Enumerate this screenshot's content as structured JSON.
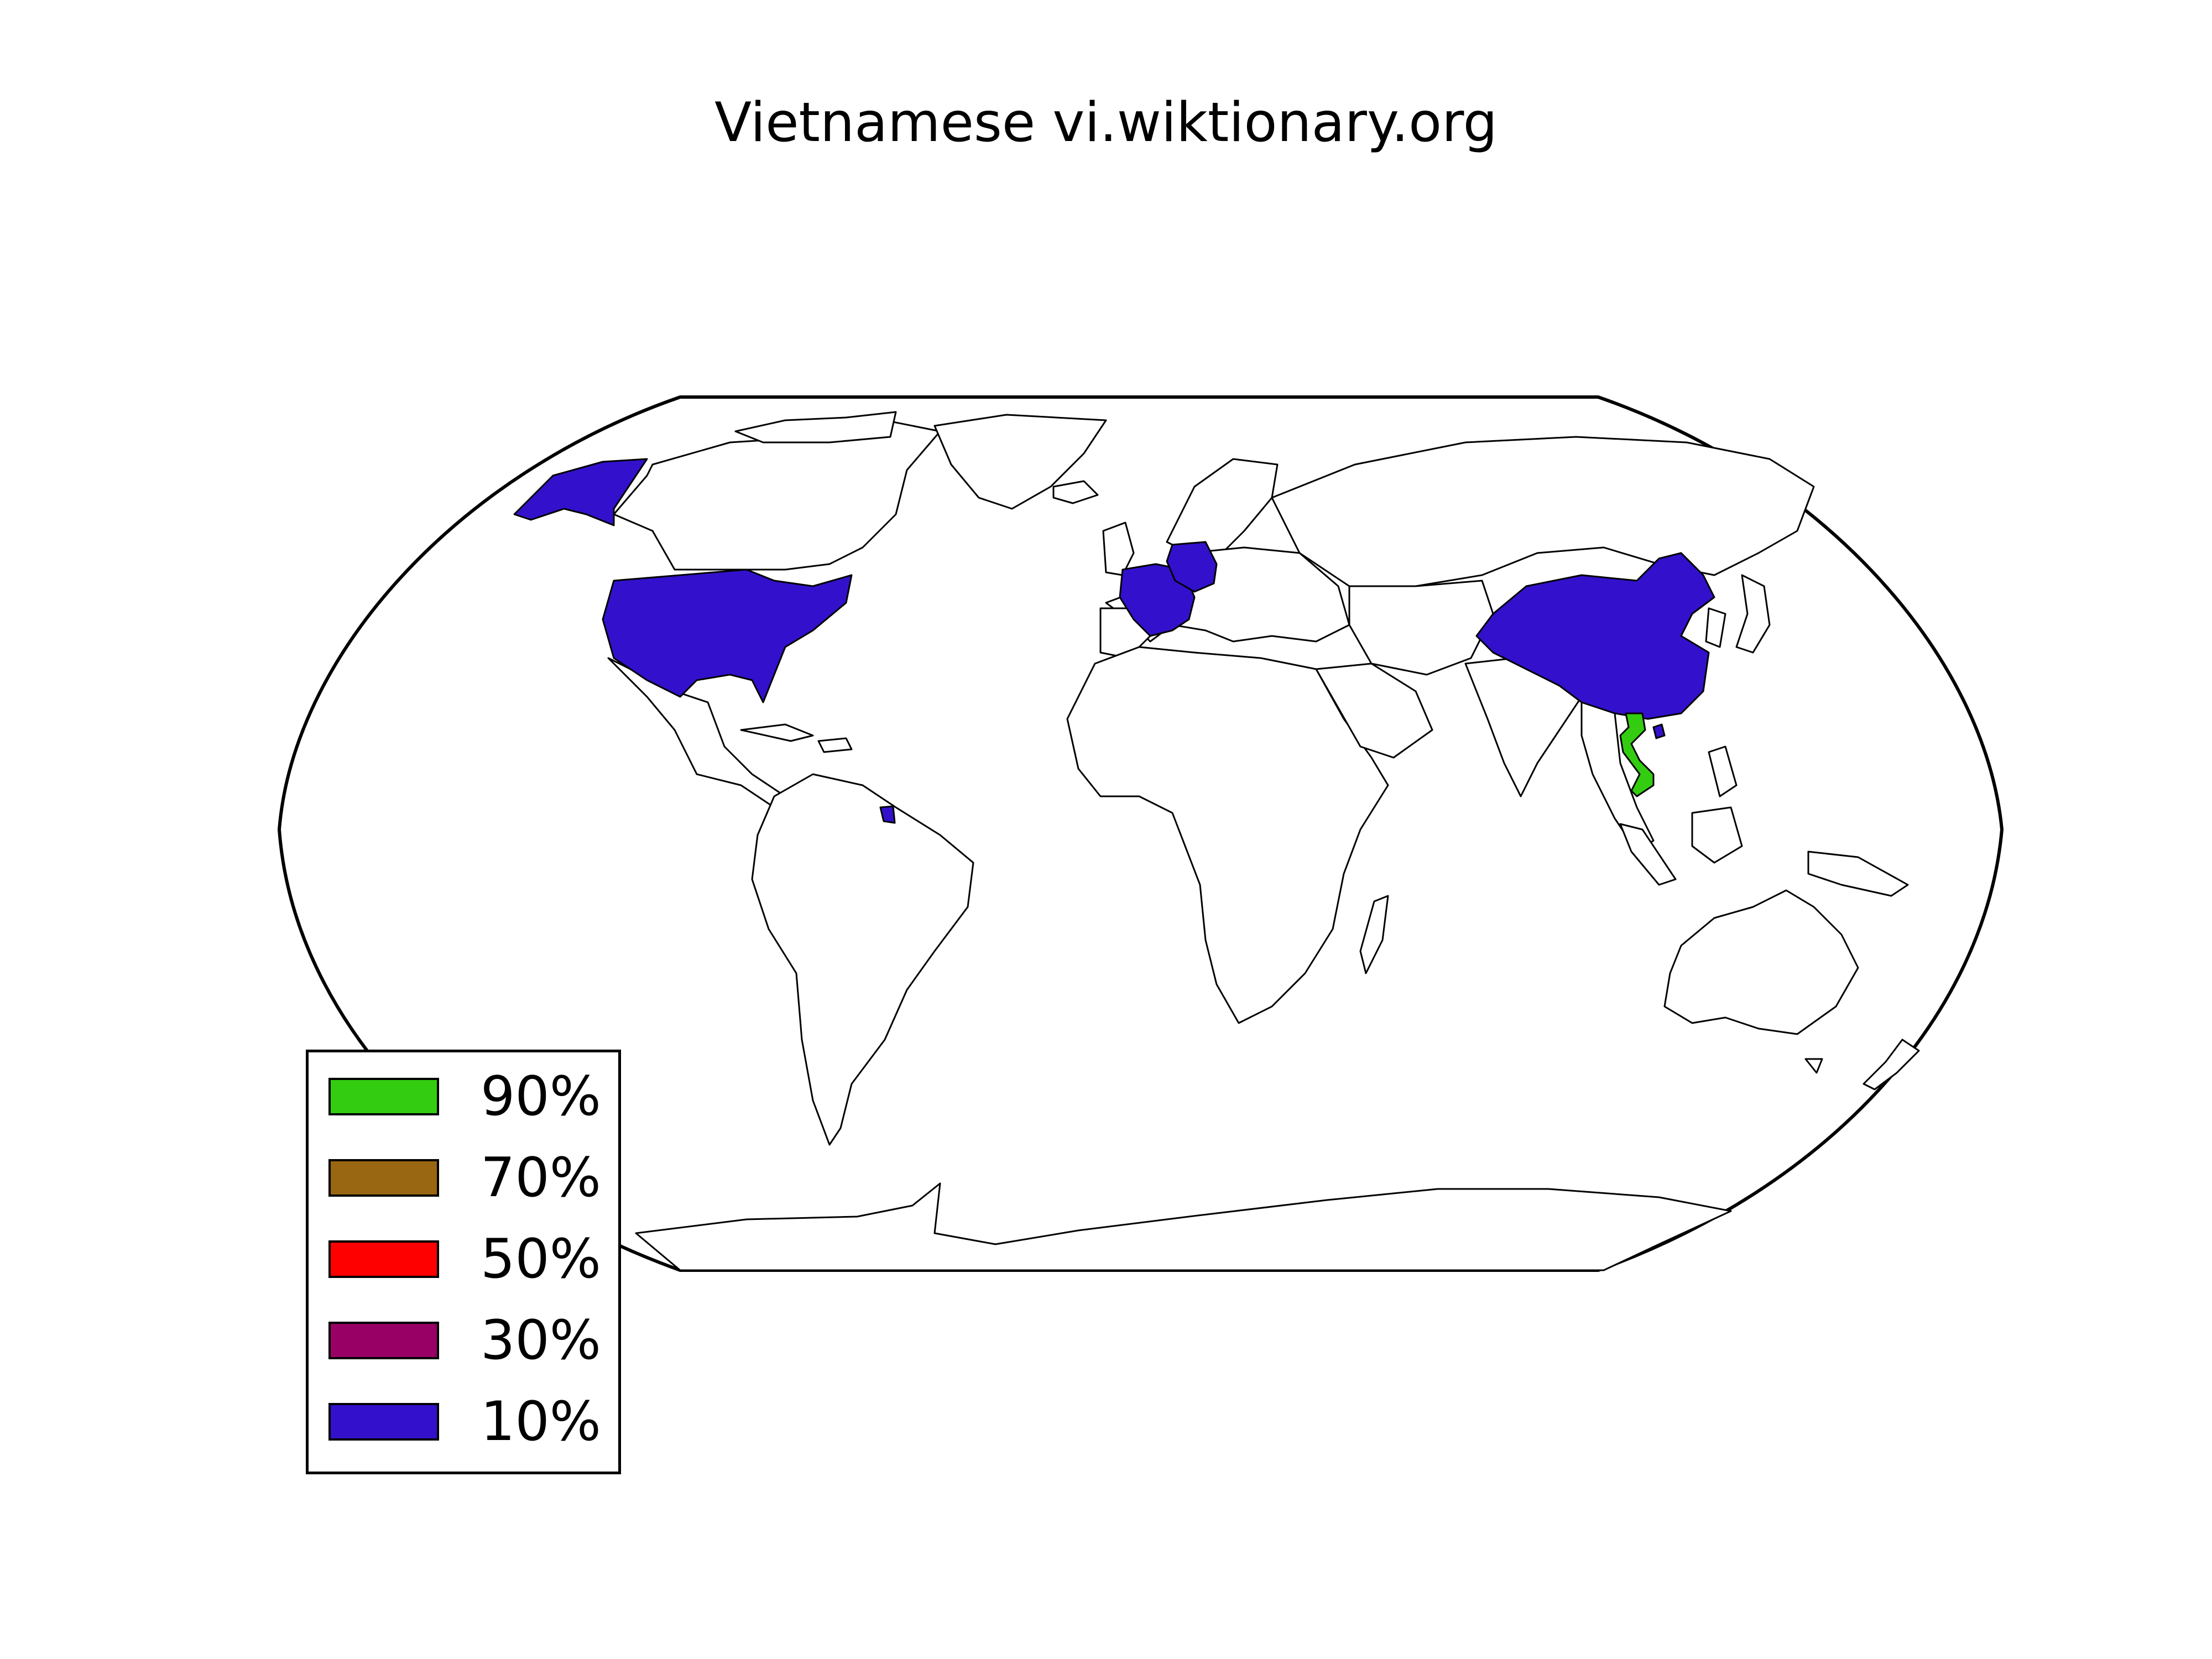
{
  "title": "Vietnamese vi.wiktionary.org",
  "legend": {
    "placement": "lower-left",
    "items": [
      {
        "label": "90%",
        "color": "#33cc11"
      },
      {
        "label": "70%",
        "color": "#996611"
      },
      {
        "label": "50%",
        "color": "#ff0000"
      },
      {
        "label": "30%",
        "color": "#990066"
      },
      {
        "label": "10%",
        "color": "#3311cc"
      }
    ]
  },
  "map": {
    "projection": "Robinson",
    "regions": [
      {
        "name": "Vietnam",
        "bin": "90%",
        "color": "#33cc11"
      },
      {
        "name": "United States",
        "bin": "10%",
        "color": "#3311cc"
      },
      {
        "name": "China",
        "bin": "10%",
        "color": "#3311cc"
      },
      {
        "name": "France",
        "bin": "10%",
        "color": "#3311cc"
      },
      {
        "name": "Germany",
        "bin": "10%",
        "color": "#3311cc"
      },
      {
        "name": "French Guiana",
        "bin": "10%",
        "color": "#3311cc"
      }
    ]
  }
}
